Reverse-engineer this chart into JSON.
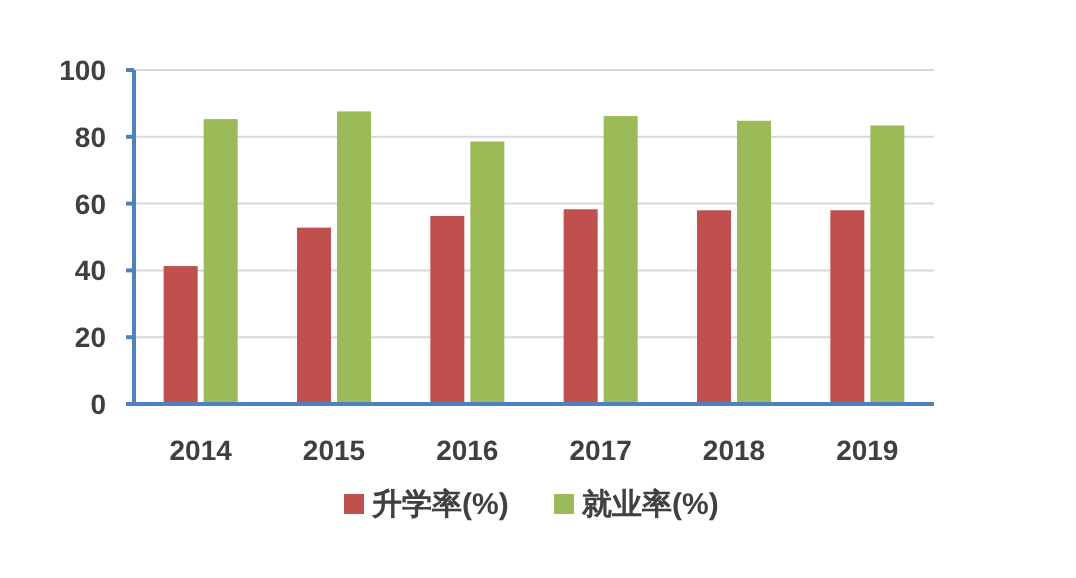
{
  "chart_data": {
    "type": "bar",
    "categories": [
      "2014",
      "2015",
      "2016",
      "2017",
      "2018",
      "2019"
    ],
    "series": [
      {
        "name": "升学率(%)",
        "color": "#c0504d",
        "values": [
          41,
          52.5,
          56,
          58,
          57.7,
          57.7
        ]
      },
      {
        "name": "就业率(%)",
        "color": "#9bbb59",
        "values": [
          85,
          87.3,
          78.3,
          85.9,
          84.5,
          83.1
        ]
      }
    ],
    "ylim": [
      0,
      100
    ],
    "yticks": [
      0,
      20,
      40,
      60,
      80,
      100
    ],
    "grid": "y",
    "legend": "bottom"
  }
}
